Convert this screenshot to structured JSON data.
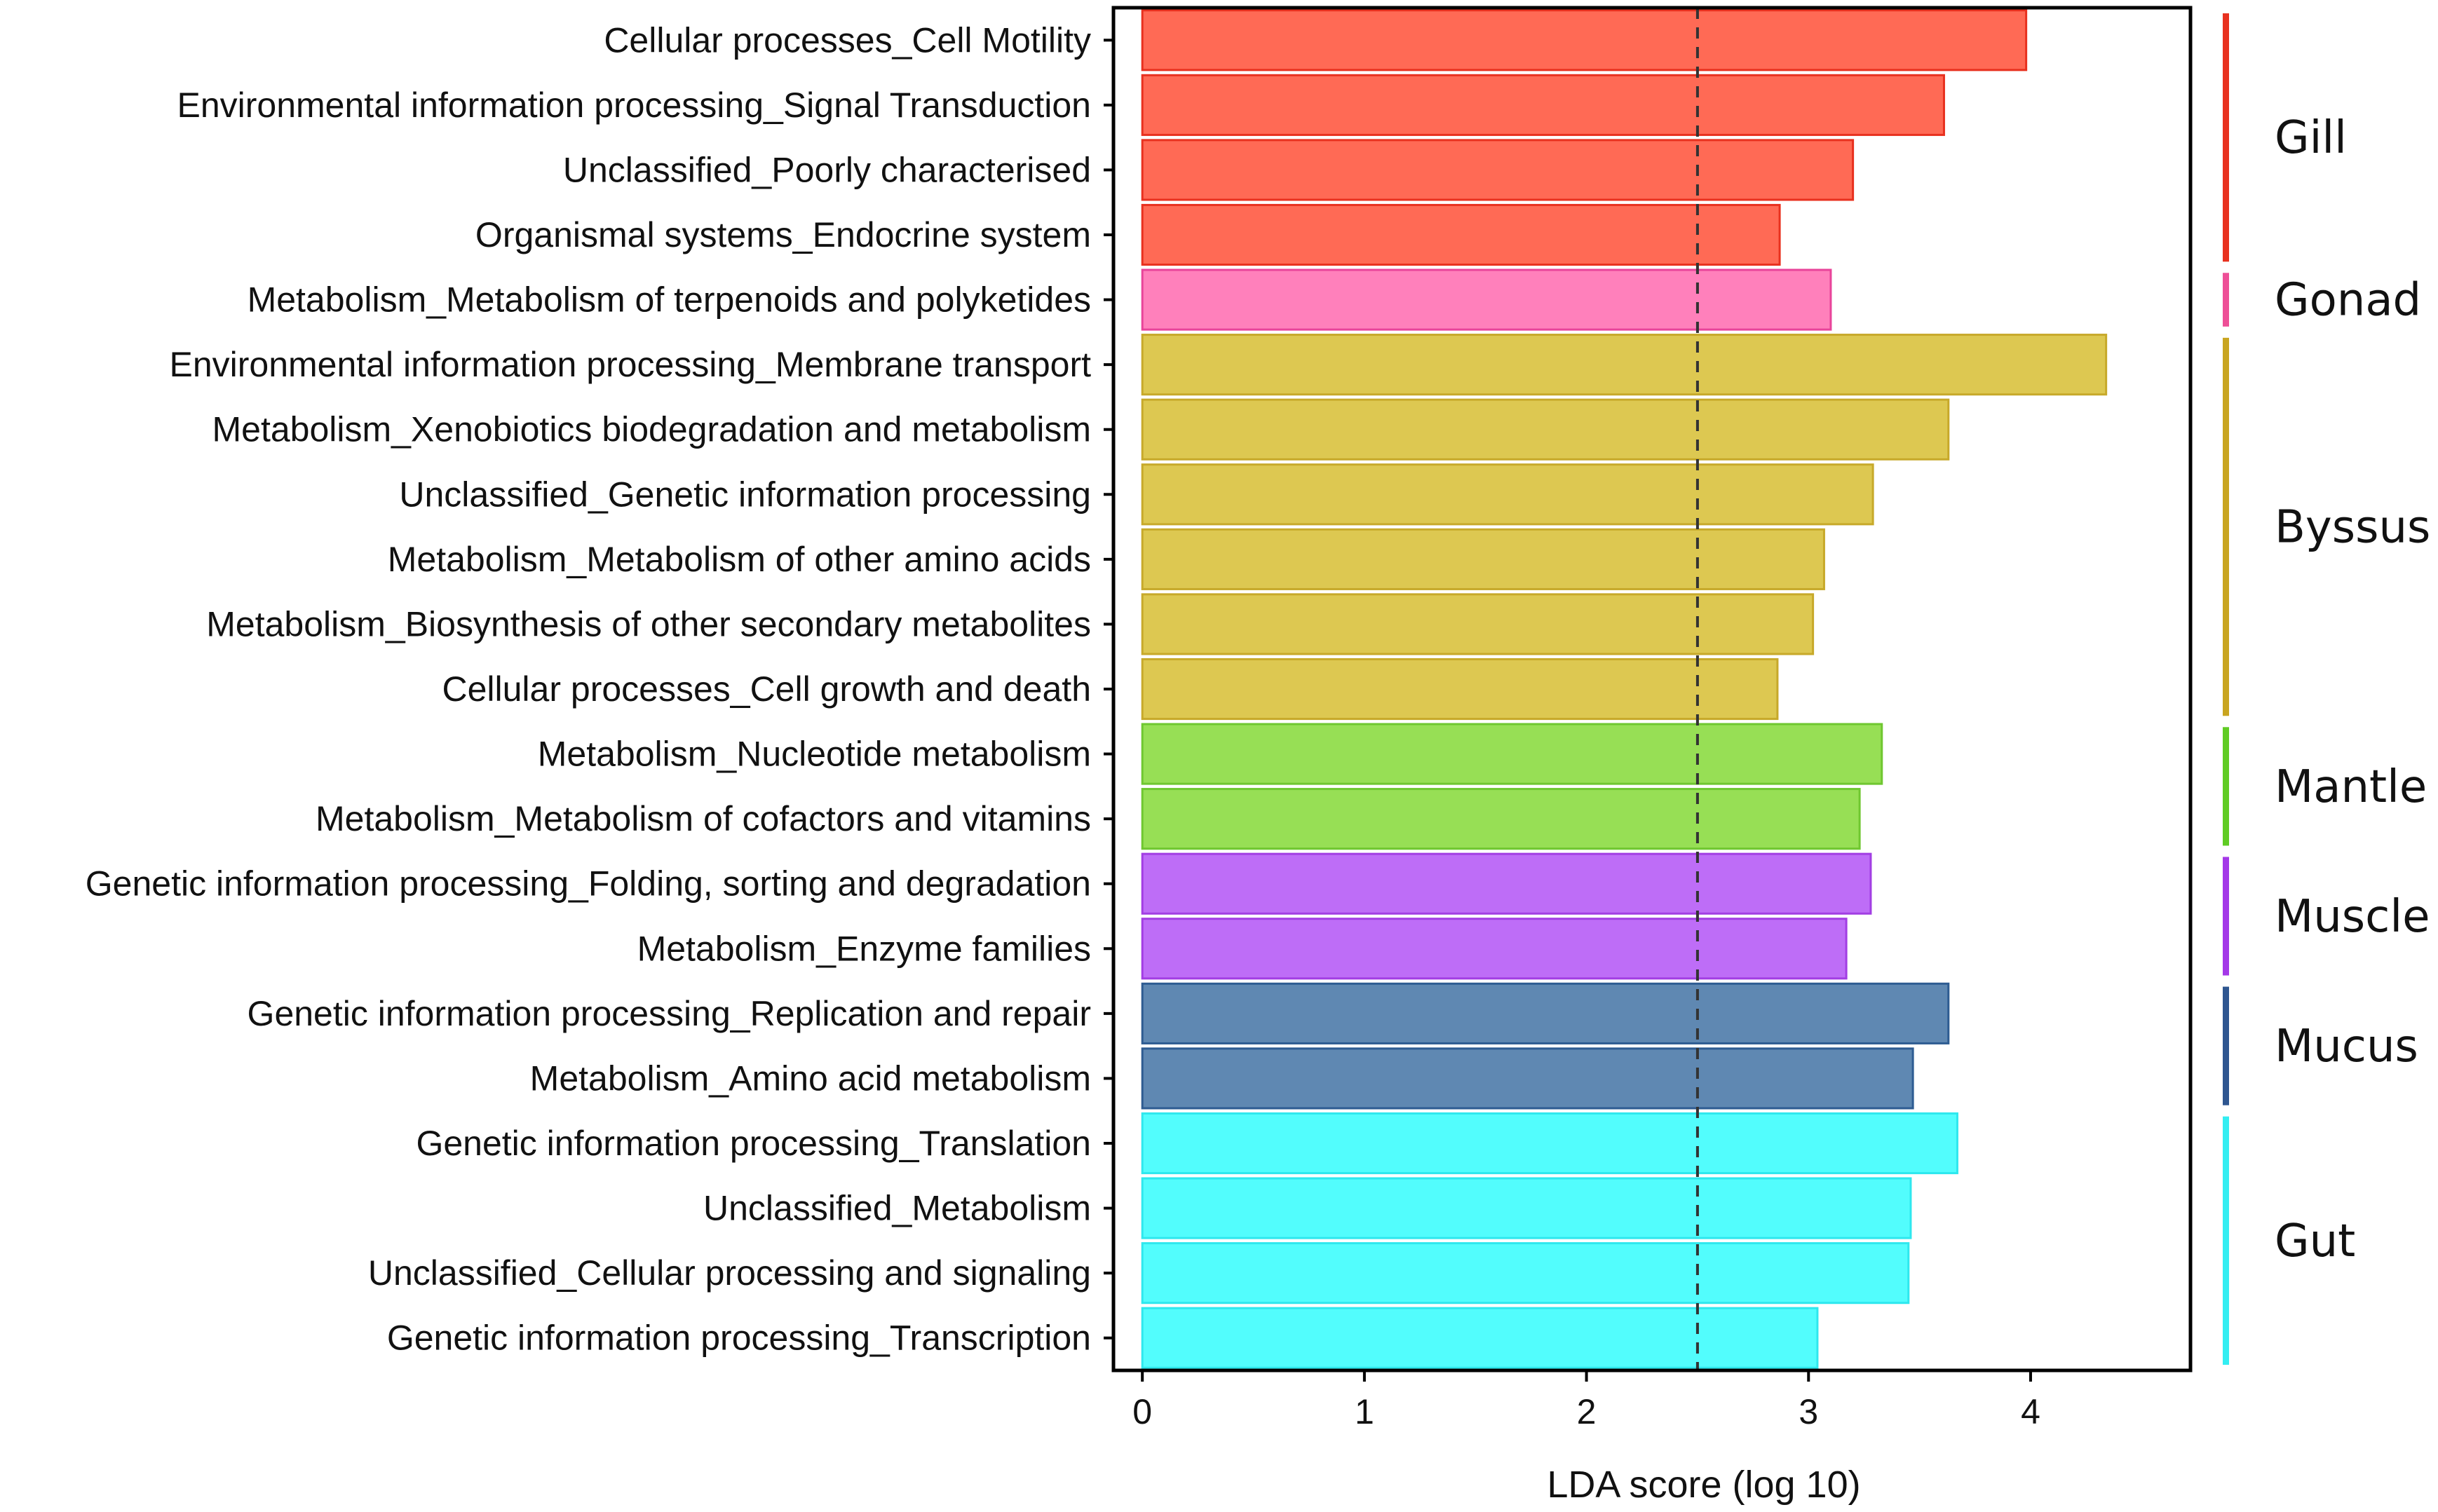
{
  "chart_data": {
    "type": "bar",
    "orientation": "horizontal",
    "xlabel": "LDA score (log 10)",
    "xlim": [
      -0.13,
      4.72
    ],
    "xticks": [
      0,
      1,
      2,
      3,
      4
    ],
    "threshold": 2.5,
    "bars": [
      {
        "label": "Cellular processes_Cell Motility",
        "value": 3.98,
        "group": "Gill"
      },
      {
        "label": "Environmental information processing_Signal Transduction",
        "value": 3.61,
        "group": "Gill"
      },
      {
        "label": "Unclassified_Poorly characterised",
        "value": 3.2,
        "group": "Gill"
      },
      {
        "label": "Organismal systems_Endocrine system",
        "value": 2.87,
        "group": "Gill"
      },
      {
        "label": "Metabolism_Metabolism of terpenoids and polyketides",
        "value": 3.1,
        "group": "Gonad"
      },
      {
        "label": "Environmental information processing_Membrane transport",
        "value": 4.34,
        "group": "Byssus"
      },
      {
        "label": "Metabolism_Xenobiotics biodegradation and metabolism",
        "value": 3.63,
        "group": "Byssus"
      },
      {
        "label": "Unclassified_Genetic information processing",
        "value": 3.29,
        "group": "Byssus"
      },
      {
        "label": "Metabolism_Metabolism of other amino acids",
        "value": 3.07,
        "group": "Byssus"
      },
      {
        "label": "Metabolism_Biosynthesis of other secondary metabolites",
        "value": 3.02,
        "group": "Byssus"
      },
      {
        "label": "Cellular processes_Cell growth and death",
        "value": 2.86,
        "group": "Byssus"
      },
      {
        "label": "Metabolism_Nucleotide metabolism",
        "value": 3.33,
        "group": "Mantle"
      },
      {
        "label": "Metabolism_Metabolism of cofactors and vitamins",
        "value": 3.23,
        "group": "Mantle"
      },
      {
        "label": "Genetic information processing_Folding, sorting and degradation",
        "value": 3.28,
        "group": "Muscle"
      },
      {
        "label": "Metabolism_Enzyme families",
        "value": 3.17,
        "group": "Muscle"
      },
      {
        "label": "Genetic information processing_Replication and repair",
        "value": 3.63,
        "group": "Mucus"
      },
      {
        "label": "Metabolism_Amino acid metabolism",
        "value": 3.47,
        "group": "Mucus"
      },
      {
        "label": "Genetic information processing_Translation",
        "value": 3.67,
        "group": "Gut"
      },
      {
        "label": "Unclassified_Metabolism",
        "value": 3.46,
        "group": "Gut"
      },
      {
        "label": "Unclassified_Cellular processing and signaling",
        "value": 3.45,
        "group": "Gut"
      },
      {
        "label": "Genetic information processing_Transcription",
        "value": 3.04,
        "group": "Gut"
      }
    ],
    "groups": [
      {
        "name": "Gill",
        "fill": "#FF6A55",
        "stroke": "#E8311F",
        "legend": "#E8311F"
      },
      {
        "name": "Gonad",
        "fill": "#FF80BB",
        "stroke": "#E8449A",
        "legend": "#EE4F97"
      },
      {
        "name": "Byssus",
        "fill": "#DDC851",
        "stroke": "#C7A92A",
        "legend": "#C9A520"
      },
      {
        "name": "Mantle",
        "fill": "#97DF55",
        "stroke": "#6FC730",
        "legend": "#60CC24"
      },
      {
        "name": "Muscle",
        "fill": "#BE6DF7",
        "stroke": "#A23EE3",
        "legend": "#A438E8"
      },
      {
        "name": "Mucus",
        "fill": "#5F88B2",
        "stroke": "#2E5C92",
        "legend": "#2E5690"
      },
      {
        "name": "Gut",
        "fill": "#52FDFD",
        "stroke": "#2EE8EE",
        "legend": "#33EEF2"
      }
    ]
  }
}
